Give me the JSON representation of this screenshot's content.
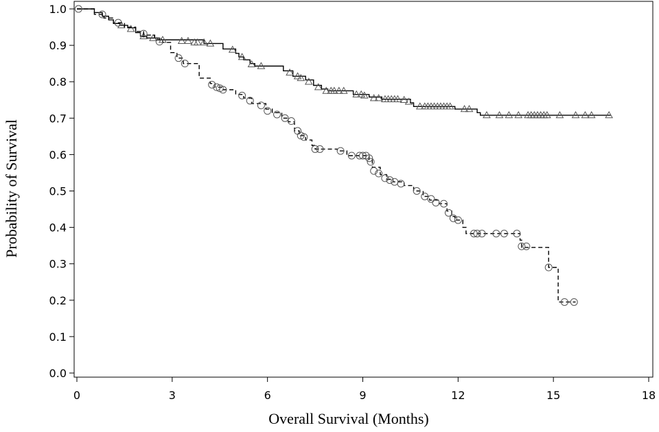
{
  "chart_data": {
    "type": "line",
    "chart_kind": "kaplan-meier",
    "title": "",
    "xlabel": "Overall Survival (Months)",
    "ylabel": "Probability of Survival",
    "xlim": [
      0,
      18
    ],
    "ylim": [
      0,
      1.0
    ],
    "xticks": [
      0,
      3,
      6,
      9,
      12,
      15,
      18
    ],
    "yticks": [
      0.0,
      0.1,
      0.2,
      0.3,
      0.4,
      0.5,
      0.6,
      0.7,
      0.8,
      0.9,
      1.0
    ],
    "xtick_labels": [
      "0",
      "3",
      "6",
      "9",
      "12",
      "15",
      "18"
    ],
    "ytick_labels": [
      "0.0",
      "0.1",
      "0.2",
      "0.3",
      "0.4",
      "0.5",
      "0.6",
      "0.7",
      "0.8",
      "0.9",
      "1.0"
    ],
    "grid": false,
    "legend": "none",
    "series": [
      {
        "line_style": "solid",
        "marker": "triangle",
        "color": "#000000",
        "steps": [
          [
            0,
            1.0
          ],
          [
            0.55,
            0.99
          ],
          [
            0.8,
            0.98
          ],
          [
            1.0,
            0.97
          ],
          [
            1.15,
            0.96
          ],
          [
            1.35,
            0.955
          ],
          [
            1.6,
            0.948
          ],
          [
            1.85,
            0.935
          ],
          [
            2.0,
            0.925
          ],
          [
            2.2,
            0.92
          ],
          [
            2.6,
            0.915
          ],
          [
            4.0,
            0.905
          ],
          [
            4.6,
            0.89
          ],
          [
            5.0,
            0.878
          ],
          [
            5.1,
            0.868
          ],
          [
            5.25,
            0.86
          ],
          [
            5.45,
            0.85
          ],
          [
            5.6,
            0.843
          ],
          [
            6.5,
            0.83
          ],
          [
            6.8,
            0.815
          ],
          [
            7.2,
            0.805
          ],
          [
            7.45,
            0.79
          ],
          [
            7.7,
            0.78
          ],
          [
            7.9,
            0.775
          ],
          [
            8.7,
            0.765
          ],
          [
            9.2,
            0.758
          ],
          [
            9.6,
            0.752
          ],
          [
            10.5,
            0.742
          ],
          [
            10.6,
            0.732
          ],
          [
            11.9,
            0.725
          ],
          [
            12.6,
            0.715
          ],
          [
            12.7,
            0.708
          ],
          [
            16.8,
            0.708
          ]
        ],
        "censored": [
          [
            1.4,
            0.955
          ],
          [
            1.7,
            0.945
          ],
          [
            2.1,
            0.925
          ],
          [
            2.4,
            0.92
          ],
          [
            2.7,
            0.915
          ],
          [
            3.3,
            0.912
          ],
          [
            3.5,
            0.912
          ],
          [
            3.7,
            0.908
          ],
          [
            3.8,
            0.908
          ],
          [
            4.0,
            0.908
          ],
          [
            4.2,
            0.905
          ],
          [
            4.9,
            0.888
          ],
          [
            5.2,
            0.868
          ],
          [
            5.5,
            0.848
          ],
          [
            5.8,
            0.843
          ],
          [
            6.7,
            0.825
          ],
          [
            6.95,
            0.815
          ],
          [
            7.05,
            0.81
          ],
          [
            7.3,
            0.8
          ],
          [
            7.6,
            0.785
          ],
          [
            7.85,
            0.775
          ],
          [
            8.0,
            0.775
          ],
          [
            8.1,
            0.775
          ],
          [
            8.25,
            0.775
          ],
          [
            8.4,
            0.775
          ],
          [
            8.8,
            0.765
          ],
          [
            8.95,
            0.765
          ],
          [
            9.05,
            0.762
          ],
          [
            9.35,
            0.755
          ],
          [
            9.5,
            0.755
          ],
          [
            9.7,
            0.752
          ],
          [
            9.8,
            0.752
          ],
          [
            9.9,
            0.752
          ],
          [
            10.0,
            0.752
          ],
          [
            10.1,
            0.752
          ],
          [
            10.3,
            0.75
          ],
          [
            10.45,
            0.745
          ],
          [
            10.8,
            0.732
          ],
          [
            10.95,
            0.732
          ],
          [
            11.05,
            0.732
          ],
          [
            11.15,
            0.732
          ],
          [
            11.25,
            0.732
          ],
          [
            11.35,
            0.732
          ],
          [
            11.45,
            0.732
          ],
          [
            11.55,
            0.732
          ],
          [
            11.65,
            0.732
          ],
          [
            11.75,
            0.732
          ],
          [
            12.2,
            0.725
          ],
          [
            12.35,
            0.725
          ],
          [
            12.9,
            0.708
          ],
          [
            13.3,
            0.708
          ],
          [
            13.6,
            0.708
          ],
          [
            13.9,
            0.708
          ],
          [
            14.2,
            0.708
          ],
          [
            14.3,
            0.708
          ],
          [
            14.4,
            0.708
          ],
          [
            14.5,
            0.708
          ],
          [
            14.6,
            0.708
          ],
          [
            14.7,
            0.708
          ],
          [
            14.8,
            0.708
          ],
          [
            15.2,
            0.708
          ],
          [
            15.7,
            0.708
          ],
          [
            16.0,
            0.708
          ],
          [
            16.2,
            0.708
          ],
          [
            16.75,
            0.708
          ]
        ]
      },
      {
        "line_style": "dashed",
        "marker": "circle",
        "color": "#000000",
        "steps": [
          [
            0,
            1.0
          ],
          [
            0.55,
            0.985
          ],
          [
            0.85,
            0.975
          ],
          [
            1.15,
            0.962
          ],
          [
            1.5,
            0.95
          ],
          [
            1.85,
            0.938
          ],
          [
            2.1,
            0.928
          ],
          [
            2.45,
            0.915
          ],
          [
            2.7,
            0.908
          ],
          [
            2.95,
            0.88
          ],
          [
            3.15,
            0.865
          ],
          [
            3.35,
            0.85
          ],
          [
            3.85,
            0.81
          ],
          [
            4.2,
            0.795
          ],
          [
            4.35,
            0.785
          ],
          [
            4.55,
            0.778
          ],
          [
            5.0,
            0.765
          ],
          [
            5.25,
            0.755
          ],
          [
            5.5,
            0.74
          ],
          [
            5.95,
            0.725
          ],
          [
            6.15,
            0.715
          ],
          [
            6.45,
            0.7
          ],
          [
            6.65,
            0.69
          ],
          [
            6.85,
            0.665
          ],
          [
            7.0,
            0.652
          ],
          [
            7.2,
            0.64
          ],
          [
            7.4,
            0.625
          ],
          [
            7.5,
            0.615
          ],
          [
            8.2,
            0.61
          ],
          [
            8.5,
            0.597
          ],
          [
            9.2,
            0.585
          ],
          [
            9.3,
            0.565
          ],
          [
            9.55,
            0.545
          ],
          [
            9.75,
            0.532
          ],
          [
            9.95,
            0.525
          ],
          [
            10.3,
            0.515
          ],
          [
            10.6,
            0.5
          ],
          [
            10.9,
            0.485
          ],
          [
            11.1,
            0.475
          ],
          [
            11.4,
            0.465
          ],
          [
            11.65,
            0.445
          ],
          [
            11.8,
            0.43
          ],
          [
            11.9,
            0.42
          ],
          [
            12.15,
            0.4
          ],
          [
            12.25,
            0.383
          ],
          [
            13.95,
            0.365
          ],
          [
            14.0,
            0.345
          ],
          [
            14.85,
            0.29
          ],
          [
            15.15,
            0.195
          ],
          [
            15.7,
            0.195
          ]
        ],
        "censored": [
          [
            0.05,
            1.0
          ],
          [
            0.8,
            0.985
          ],
          [
            1.3,
            0.962
          ],
          [
            2.1,
            0.932
          ],
          [
            2.6,
            0.91
          ],
          [
            3.2,
            0.865
          ],
          [
            3.4,
            0.85
          ],
          [
            4.25,
            0.792
          ],
          [
            4.4,
            0.785
          ],
          [
            4.5,
            0.782
          ],
          [
            4.6,
            0.778
          ],
          [
            5.2,
            0.762
          ],
          [
            5.45,
            0.748
          ],
          [
            5.8,
            0.735
          ],
          [
            6.0,
            0.72
          ],
          [
            6.3,
            0.71
          ],
          [
            6.55,
            0.7
          ],
          [
            6.75,
            0.692
          ],
          [
            6.95,
            0.665
          ],
          [
            7.05,
            0.652
          ],
          [
            7.15,
            0.648
          ],
          [
            7.5,
            0.615
          ],
          [
            7.65,
            0.615
          ],
          [
            8.3,
            0.61
          ],
          [
            8.65,
            0.597
          ],
          [
            8.9,
            0.597
          ],
          [
            9.0,
            0.597
          ],
          [
            9.1,
            0.597
          ],
          [
            9.2,
            0.59
          ],
          [
            9.25,
            0.58
          ],
          [
            9.35,
            0.555
          ],
          [
            9.5,
            0.548
          ],
          [
            9.7,
            0.535
          ],
          [
            9.85,
            0.53
          ],
          [
            10.0,
            0.525
          ],
          [
            10.2,
            0.52
          ],
          [
            10.7,
            0.5
          ],
          [
            10.95,
            0.485
          ],
          [
            11.15,
            0.478
          ],
          [
            11.3,
            0.468
          ],
          [
            11.55,
            0.465
          ],
          [
            11.7,
            0.44
          ],
          [
            11.85,
            0.425
          ],
          [
            12.0,
            0.42
          ],
          [
            12.5,
            0.383
          ],
          [
            12.6,
            0.383
          ],
          [
            12.75,
            0.383
          ],
          [
            13.2,
            0.383
          ],
          [
            13.45,
            0.383
          ],
          [
            13.85,
            0.383
          ],
          [
            14.0,
            0.348
          ],
          [
            14.15,
            0.348
          ],
          [
            14.85,
            0.29
          ],
          [
            15.35,
            0.195
          ],
          [
            15.65,
            0.195
          ]
        ]
      }
    ]
  }
}
